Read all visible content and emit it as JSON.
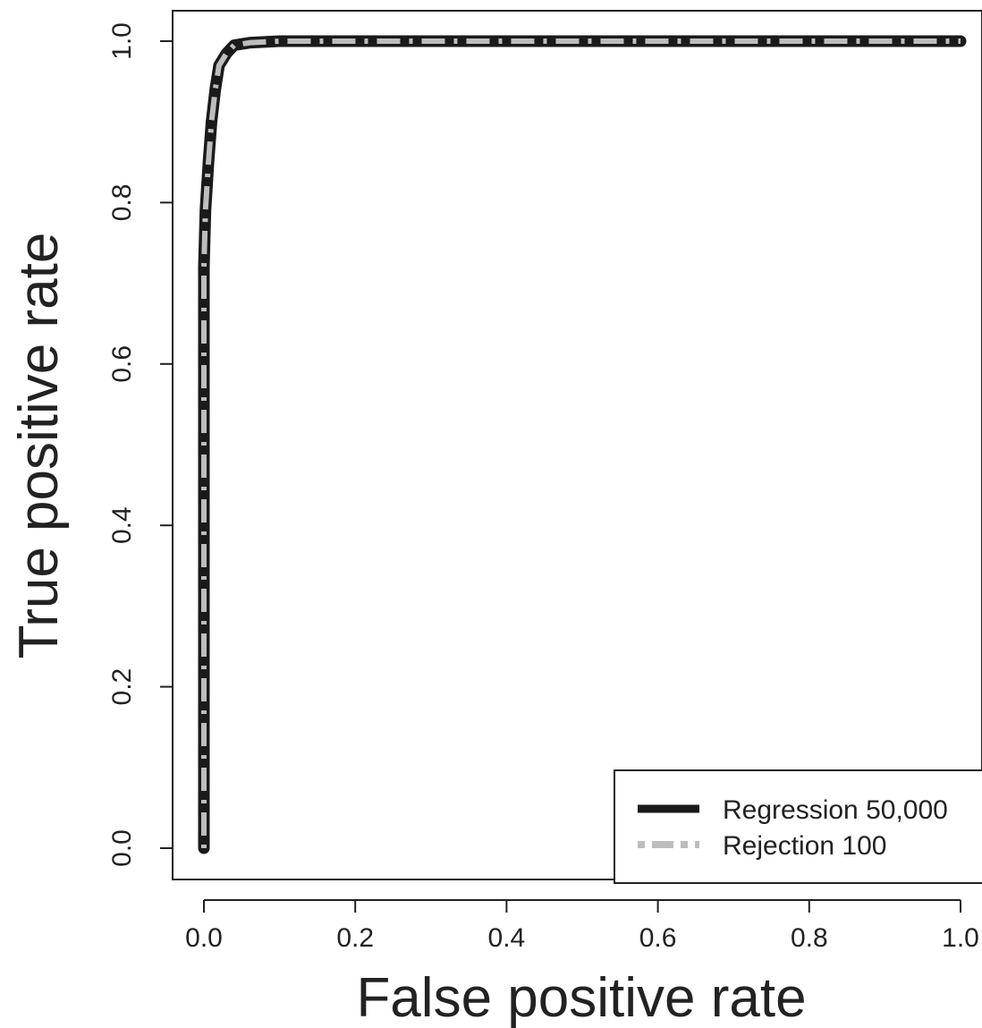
{
  "chart_data": {
    "type": "line",
    "title": "",
    "xlabel": "False positive rate",
    "ylabel": "True positive rate",
    "xlim": [
      0,
      1
    ],
    "ylim": [
      0,
      1
    ],
    "x_ticks": [
      "0.0",
      "0.2",
      "0.4",
      "0.6",
      "0.8",
      "1.0"
    ],
    "y_ticks": [
      "0.0",
      "0.2",
      "0.4",
      "0.6",
      "0.8",
      "1.0"
    ],
    "grid": false,
    "legend_position": "bottom-right",
    "series": [
      {
        "name": "Regression 50,000",
        "color": "#1a1a1a",
        "style": "solid",
        "x": [
          0.0,
          0.0,
          0.0,
          0.002,
          0.004,
          0.006,
          0.01,
          0.015,
          0.02,
          0.03,
          0.04,
          0.06,
          0.1,
          0.3,
          1.0
        ],
        "y": [
          0.0,
          0.5,
          0.72,
          0.79,
          0.82,
          0.85,
          0.9,
          0.94,
          0.97,
          0.985,
          0.995,
          0.998,
          1.0,
          1.0,
          1.0
        ]
      },
      {
        "name": "Rejection 100",
        "color": "#bdbdbd",
        "style": "dashdot",
        "x": [
          0.0,
          0.0,
          0.0,
          0.002,
          0.004,
          0.006,
          0.01,
          0.015,
          0.02,
          0.03,
          0.04,
          0.06,
          0.1,
          0.3,
          1.0
        ],
        "y": [
          0.0,
          0.5,
          0.72,
          0.79,
          0.82,
          0.85,
          0.9,
          0.94,
          0.97,
          0.985,
          0.995,
          0.998,
          1.0,
          1.0,
          1.0
        ]
      }
    ]
  }
}
